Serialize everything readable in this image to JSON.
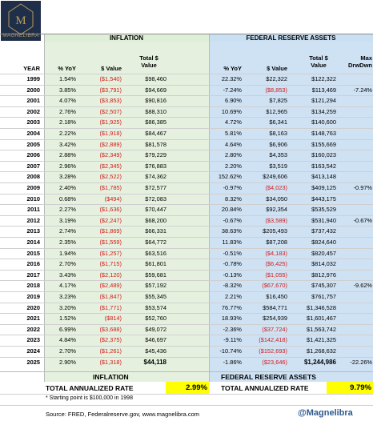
{
  "logo": {
    "text": "MAGNELIBRA"
  },
  "sections": {
    "inflation": "INFLATION",
    "fed": "FEDERAL RESERVE ASSETS"
  },
  "headers": {
    "year": "YEAR",
    "inf_pct": "% YoY",
    "inf_val": "$ Value",
    "inf_total_1": "Total $",
    "inf_total_2": "Value",
    "fed_pct": "% YoY",
    "fed_val": "$ Value",
    "fed_total_1": "Total $",
    "fed_total_2": "Value",
    "fed_dd_1": "Max",
    "fed_dd_2": "DrwDwn"
  },
  "rows": [
    {
      "year": "1999",
      "ipct": "1.54%",
      "ival": "($1,540)",
      "itot": "$98,460",
      "fpct": "22.32%",
      "fval": "$22,322",
      "ftot": "$122,322",
      "fdd": ""
    },
    {
      "year": "2000",
      "ipct": "3.85%",
      "ival": "($3,791)",
      "itot": "$94,669",
      "fpct": "-7.24%",
      "fval": "($8,853)",
      "ftot": "$113,469",
      "fdd": "-7.24%"
    },
    {
      "year": "2001",
      "ipct": "4.07%",
      "ival": "($3,853)",
      "itot": "$90,816",
      "fpct": "6.90%",
      "fval": "$7,825",
      "ftot": "$121,294",
      "fdd": ""
    },
    {
      "year": "2002",
      "ipct": "2.76%",
      "ival": "($2,507)",
      "itot": "$88,310",
      "fpct": "10.69%",
      "fval": "$12,965",
      "ftot": "$134,259",
      "fdd": ""
    },
    {
      "year": "2003",
      "ipct": "2.18%",
      "ival": "($1,925)",
      "itot": "$86,385",
      "fpct": "4.72%",
      "fval": "$6,341",
      "ftot": "$140,600",
      "fdd": ""
    },
    {
      "year": "2004",
      "ipct": "2.22%",
      "ival": "($1,918)",
      "itot": "$84,467",
      "fpct": "5.81%",
      "fval": "$8,163",
      "ftot": "$148,763",
      "fdd": ""
    },
    {
      "year": "2005",
      "ipct": "3.42%",
      "ival": "($2,889)",
      "itot": "$81,578",
      "fpct": "4.64%",
      "fval": "$6,906",
      "ftot": "$155,669",
      "fdd": ""
    },
    {
      "year": "2006",
      "ipct": "2.88%",
      "ival": "($2,349)",
      "itot": "$79,229",
      "fpct": "2.80%",
      "fval": "$4,353",
      "ftot": "$160,023",
      "fdd": ""
    },
    {
      "year": "2007",
      "ipct": "2.96%",
      "ival": "($2,345)",
      "itot": "$76,883",
      "fpct": "2.20%",
      "fval": "$3,519",
      "ftot": "$163,542",
      "fdd": ""
    },
    {
      "year": "2008",
      "ipct": "3.28%",
      "ival": "($2,522)",
      "itot": "$74,362",
      "fpct": "152.62%",
      "fval": "$249,606",
      "ftot": "$413,148",
      "fdd": ""
    },
    {
      "year": "2009",
      "ipct": "2.40%",
      "ival": "($1,785)",
      "itot": "$72,577",
      "fpct": "-0.97%",
      "fval": "($4,023)",
      "ftot": "$409,125",
      "fdd": "-0.97%"
    },
    {
      "year": "2010",
      "ipct": "0.68%",
      "ival": "($494)",
      "itot": "$72,083",
      "fpct": "8.32%",
      "fval": "$34,050",
      "ftot": "$443,175",
      "fdd": ""
    },
    {
      "year": "2011",
      "ipct": "2.27%",
      "ival": "($1,636)",
      "itot": "$70,447",
      "fpct": "20.84%",
      "fval": "$92,354",
      "ftot": "$535,529",
      "fdd": ""
    },
    {
      "year": "2012",
      "ipct": "3.19%",
      "ival": "($2,247)",
      "itot": "$68,200",
      "fpct": "-0.67%",
      "fval": "($3,589)",
      "ftot": "$531,940",
      "fdd": "-0.67%"
    },
    {
      "year": "2013",
      "ipct": "2.74%",
      "ival": "($1,869)",
      "itot": "$66,331",
      "fpct": "38.63%",
      "fval": "$205,493",
      "ftot": "$737,432",
      "fdd": ""
    },
    {
      "year": "2014",
      "ipct": "2.35%",
      "ival": "($1,559)",
      "itot": "$64,772",
      "fpct": "11.83%",
      "fval": "$87,208",
      "ftot": "$824,640",
      "fdd": ""
    },
    {
      "year": "2015",
      "ipct": "1.94%",
      "ival": "($1,257)",
      "itot": "$63,516",
      "fpct": "-0.51%",
      "fval": "($4,183)",
      "ftot": "$820,457",
      "fdd": ""
    },
    {
      "year": "2016",
      "ipct": "2.70%",
      "ival": "($1,715)",
      "itot": "$61,801",
      "fpct": "-0.78%",
      "fval": "($6,425)",
      "ftot": "$814,032",
      "fdd": ""
    },
    {
      "year": "2017",
      "ipct": "3.43%",
      "ival": "($2,120)",
      "itot": "$59,681",
      "fpct": "-0.13%",
      "fval": "($1,055)",
      "ftot": "$812,976",
      "fdd": ""
    },
    {
      "year": "2018",
      "ipct": "4.17%",
      "ival": "($2,489)",
      "itot": "$57,192",
      "fpct": "-8.32%",
      "fval": "($67,670)",
      "ftot": "$745,307",
      "fdd": "-9.62%"
    },
    {
      "year": "2019",
      "ipct": "3.23%",
      "ival": "($1,847)",
      "itot": "$55,345",
      "fpct": "2.21%",
      "fval": "$16,450",
      "ftot": "$761,757",
      "fdd": ""
    },
    {
      "year": "2020",
      "ipct": "3.20%",
      "ival": "($1,771)",
      "itot": "$53,574",
      "fpct": "76.77%",
      "fval": "$584,771",
      "ftot": "$1,346,528",
      "fdd": ""
    },
    {
      "year": "2021",
      "ipct": "1.52%",
      "ival": "($814)",
      "itot": "$52,760",
      "fpct": "18.93%",
      "fval": "$254,939",
      "ftot": "$1,601,467",
      "fdd": ""
    },
    {
      "year": "2022",
      "ipct": "6.99%",
      "ival": "($3,688)",
      "itot": "$49,072",
      "fpct": "-2.36%",
      "fval": "($37,724)",
      "ftot": "$1,563,742",
      "fdd": ""
    },
    {
      "year": "2023",
      "ipct": "4.84%",
      "ival": "($2,375)",
      "itot": "$46,697",
      "fpct": "-9.11%",
      "fval": "($142,418)",
      "ftot": "$1,421,325",
      "fdd": ""
    },
    {
      "year": "2024",
      "ipct": "2.70%",
      "ival": "($1,261)",
      "itot": "$45,436",
      "fpct": "-10.74%",
      "fval": "($152,693)",
      "ftot": "$1,268,632",
      "fdd": ""
    },
    {
      "year": "2025",
      "ipct": "2.90%",
      "ival": "($1,318)",
      "itot": "$44,118",
      "fpct": "-1.86%",
      "fval": "($23,646)",
      "ftot": "$1,244,986",
      "fdd": "-22.26%"
    }
  ],
  "footer": {
    "inf_label": "INFLATION",
    "fed_label": "FEDERAL RESERVE ASSETS",
    "inf_rate_label": "TOTAL ANNUALIZED RATE",
    "inf_rate": "2.99%",
    "fed_rate_label": "TOTAL ANNUALIZED RATE",
    "fed_rate": "9.79%",
    "note": "* Starting point is $100,000 in 1998",
    "source": "Source: FRED, Federalreserve.gov, www.magnelibra.com",
    "handle": "@Magnelibra"
  },
  "colors": {
    "inflation_bg": "#e5f1de",
    "fed_bg": "#cfe2f4",
    "negative": "#d11a1a",
    "highlight": "#ffff00",
    "handle": "#2d5a8e",
    "logo_bg": "#1f2f4a",
    "logo_gold": "#b89a5a"
  }
}
